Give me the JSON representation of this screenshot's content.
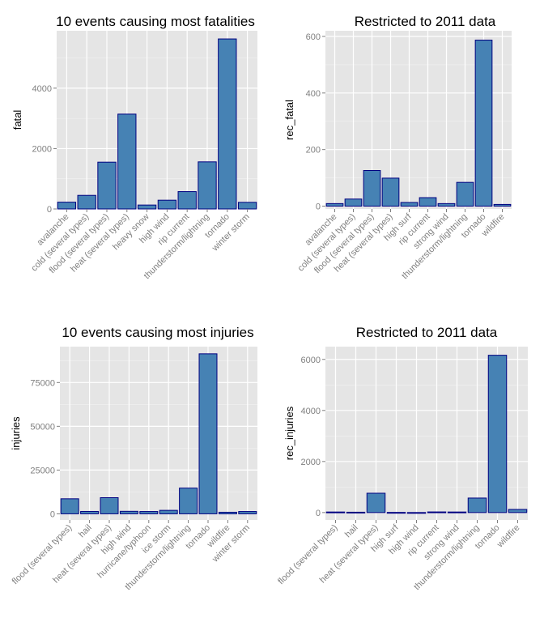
{
  "chart_data": [
    {
      "type": "bar",
      "title": "10 events causing most fatalities",
      "xlabel": "",
      "ylabel": "fatal",
      "categories": [
        "avalanche",
        "cold (several types)",
        "flood (several types)",
        "heat (several types)",
        "heavy snow",
        "high wind",
        "rip current",
        "thunderstorm/lightning",
        "tornado",
        "winter storm"
      ],
      "values": [
        225,
        450,
        1550,
        3140,
        130,
        290,
        575,
        1560,
        5630,
        220
      ],
      "ylim": [
        0,
        5900
      ],
      "yticks": [
        0,
        2000,
        4000
      ],
      "grid": true,
      "colors": {
        "bar_fill": "#4682b4",
        "bar_stroke": "#000080",
        "panel_bg": "#e5e5e5",
        "grid": "#ffffff"
      }
    },
    {
      "type": "bar",
      "title": "Restricted to 2011 data",
      "xlabel": "",
      "ylabel": "rec_fatal",
      "categories": [
        "avalanche",
        "cold (several types)",
        "flood (several types)",
        "heat (several types)",
        "high surf",
        "rip current",
        "strong wind",
        "thunderstorm/lightning",
        "tornado",
        "wildfire"
      ],
      "values": [
        9,
        25,
        126,
        99,
        13,
        30,
        9,
        84,
        587,
        6
      ],
      "ylim": [
        -10,
        620
      ],
      "yticks": [
        0,
        200,
        400,
        600
      ],
      "grid": true,
      "colors": {
        "bar_fill": "#4682b4",
        "bar_stroke": "#000080",
        "panel_bg": "#e5e5e5",
        "grid": "#ffffff"
      }
    },
    {
      "type": "bar",
      "title": "10 events causing most injuries",
      "xlabel": "",
      "ylabel": "injuries",
      "categories": [
        "flood (several types)",
        "hail",
        "heat (several types)",
        "high wind",
        "hurricane/typhoon",
        "ice storm",
        "thunderstorm/lightning",
        "tornado",
        "wildfire",
        "winter storm"
      ],
      "values": [
        8600,
        1370,
        9220,
        1440,
        1330,
        1990,
        14700,
        91400,
        910,
        1330
      ],
      "ylim": [
        -3500,
        95500
      ],
      "yticks": [
        0,
        25000,
        50000,
        75000
      ],
      "grid": true,
      "colors": {
        "bar_fill": "#4682b4",
        "bar_stroke": "#000080",
        "panel_bg": "#e5e5e5",
        "grid": "#ffffff"
      }
    },
    {
      "type": "bar",
      "title": "Restricted to 2011 data",
      "xlabel": "",
      "ylabel": "rec_injuries",
      "categories": [
        "flood (several types)",
        "hail",
        "heat (several types)",
        "high surf",
        "high wind",
        "rip current",
        "strong wind",
        "thunderstorm/lightning",
        "tornado",
        "wildfire"
      ],
      "values": [
        22,
        14,
        757,
        6,
        2,
        25,
        22,
        568,
        6163,
        122
      ],
      "ylim": [
        -290,
        6500
      ],
      "yticks": [
        0,
        2000,
        4000,
        6000
      ],
      "grid": true,
      "colors": {
        "bar_fill": "#4682b4",
        "bar_stroke": "#000080",
        "panel_bg": "#e5e5e5",
        "grid": "#ffffff"
      }
    }
  ]
}
